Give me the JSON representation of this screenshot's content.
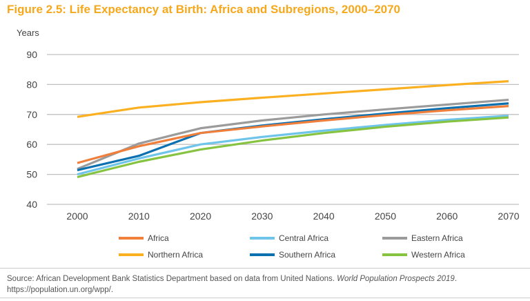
{
  "title": "Figure 2.5: Life Expectancy at Birth: Africa and Subregions, 2000–2070",
  "source": {
    "text": "Source: African Development Bank Statistics Department based on data from United Nations. ",
    "italic": "World Population Prospects 2019",
    "tail": ".",
    "url": "https://population.un.org/wpp/."
  },
  "chart_data": {
    "type": "line",
    "title": "Figure 2.5: Life Expectancy at Birth: Africa and Subregions, 2000–2070",
    "ylabel": "Years",
    "xlabel": "",
    "x": [
      2000,
      2010,
      2020,
      2030,
      2040,
      2050,
      2060,
      2070
    ],
    "ylim": [
      40,
      90
    ],
    "yticks": [
      40,
      50,
      60,
      70,
      80,
      90
    ],
    "grid": true,
    "legend_position": "bottom",
    "series": [
      {
        "name": "Africa",
        "color": "#f07f3c",
        "values": [
          53.8,
          59.4,
          63.8,
          66.0,
          68.0,
          69.8,
          71.4,
          72.8
        ]
      },
      {
        "name": "Central Africa",
        "color": "#6fc4ea",
        "values": [
          50.0,
          55.3,
          60.0,
          62.5,
          64.6,
          66.5,
          68.2,
          69.6
        ]
      },
      {
        "name": "Eastern Africa",
        "color": "#9b9b9b",
        "values": [
          51.8,
          60.3,
          65.4,
          68.0,
          70.0,
          71.7,
          73.3,
          74.9
        ]
      },
      {
        "name": "Northern Africa",
        "color": "#fbb021",
        "values": [
          69.2,
          72.3,
          74.1,
          75.6,
          77.0,
          78.4,
          79.8,
          81.1
        ]
      },
      {
        "name": "Southern Africa",
        "color": "#0b70b0",
        "values": [
          51.4,
          56.2,
          63.8,
          66.3,
          68.4,
          70.3,
          72.1,
          73.7
        ]
      },
      {
        "name": "Western Africa",
        "color": "#86c341",
        "values": [
          49.1,
          54.2,
          58.3,
          61.3,
          63.8,
          65.9,
          67.6,
          69.0
        ]
      }
    ]
  }
}
